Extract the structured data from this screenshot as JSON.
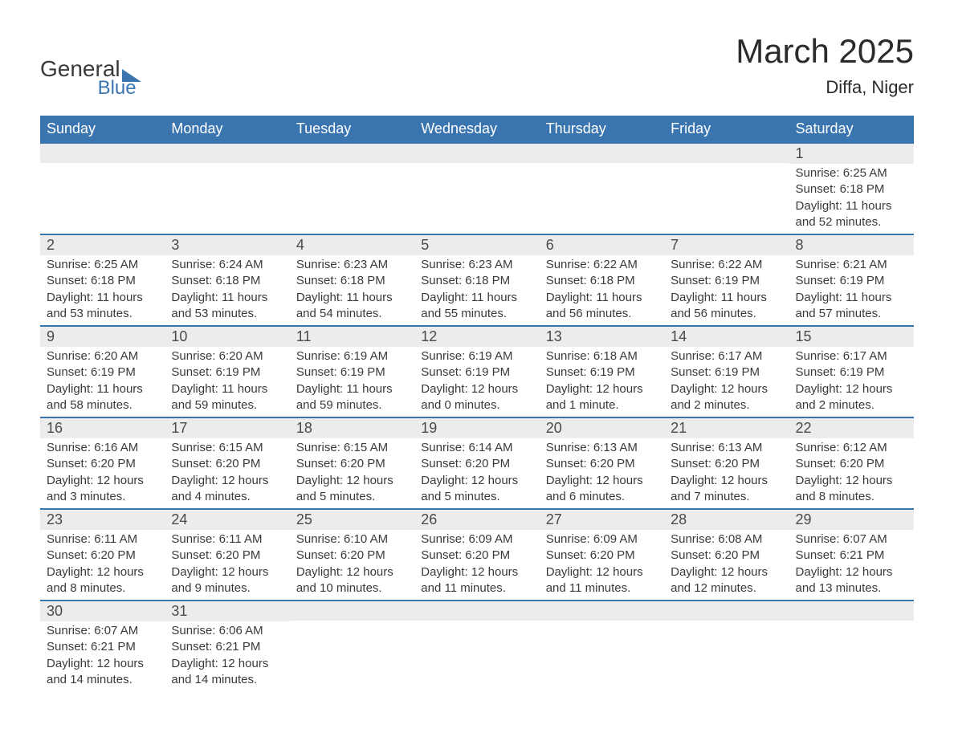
{
  "logo": {
    "primary": "General",
    "secondary": "Blue"
  },
  "title": "March 2025",
  "location": "Diffa, Niger",
  "colors": {
    "header_bg": "#3a75b0",
    "header_text": "#ffffff",
    "row_separator": "#3a75b0",
    "daynum_bg": "#ececec",
    "text": "#3a3a3a",
    "page_bg": "#ffffff"
  },
  "layout": {
    "columns": 7,
    "rows": 6,
    "week_start": "Sunday"
  },
  "weekdays": [
    "Sunday",
    "Monday",
    "Tuesday",
    "Wednesday",
    "Thursday",
    "Friday",
    "Saturday"
  ],
  "weeks": [
    [
      null,
      null,
      null,
      null,
      null,
      null,
      {
        "day": "1",
        "sunrise": "Sunrise: 6:25 AM",
        "sunset": "Sunset: 6:18 PM",
        "daylight": "Daylight: 11 hours and 52 minutes."
      }
    ],
    [
      {
        "day": "2",
        "sunrise": "Sunrise: 6:25 AM",
        "sunset": "Sunset: 6:18 PM",
        "daylight": "Daylight: 11 hours and 53 minutes."
      },
      {
        "day": "3",
        "sunrise": "Sunrise: 6:24 AM",
        "sunset": "Sunset: 6:18 PM",
        "daylight": "Daylight: 11 hours and 53 minutes."
      },
      {
        "day": "4",
        "sunrise": "Sunrise: 6:23 AM",
        "sunset": "Sunset: 6:18 PM",
        "daylight": "Daylight: 11 hours and 54 minutes."
      },
      {
        "day": "5",
        "sunrise": "Sunrise: 6:23 AM",
        "sunset": "Sunset: 6:18 PM",
        "daylight": "Daylight: 11 hours and 55 minutes."
      },
      {
        "day": "6",
        "sunrise": "Sunrise: 6:22 AM",
        "sunset": "Sunset: 6:18 PM",
        "daylight": "Daylight: 11 hours and 56 minutes."
      },
      {
        "day": "7",
        "sunrise": "Sunrise: 6:22 AM",
        "sunset": "Sunset: 6:19 PM",
        "daylight": "Daylight: 11 hours and 56 minutes."
      },
      {
        "day": "8",
        "sunrise": "Sunrise: 6:21 AM",
        "sunset": "Sunset: 6:19 PM",
        "daylight": "Daylight: 11 hours and 57 minutes."
      }
    ],
    [
      {
        "day": "9",
        "sunrise": "Sunrise: 6:20 AM",
        "sunset": "Sunset: 6:19 PM",
        "daylight": "Daylight: 11 hours and 58 minutes."
      },
      {
        "day": "10",
        "sunrise": "Sunrise: 6:20 AM",
        "sunset": "Sunset: 6:19 PM",
        "daylight": "Daylight: 11 hours and 59 minutes."
      },
      {
        "day": "11",
        "sunrise": "Sunrise: 6:19 AM",
        "sunset": "Sunset: 6:19 PM",
        "daylight": "Daylight: 11 hours and 59 minutes."
      },
      {
        "day": "12",
        "sunrise": "Sunrise: 6:19 AM",
        "sunset": "Sunset: 6:19 PM",
        "daylight": "Daylight: 12 hours and 0 minutes."
      },
      {
        "day": "13",
        "sunrise": "Sunrise: 6:18 AM",
        "sunset": "Sunset: 6:19 PM",
        "daylight": "Daylight: 12 hours and 1 minute."
      },
      {
        "day": "14",
        "sunrise": "Sunrise: 6:17 AM",
        "sunset": "Sunset: 6:19 PM",
        "daylight": "Daylight: 12 hours and 2 minutes."
      },
      {
        "day": "15",
        "sunrise": "Sunrise: 6:17 AM",
        "sunset": "Sunset: 6:19 PM",
        "daylight": "Daylight: 12 hours and 2 minutes."
      }
    ],
    [
      {
        "day": "16",
        "sunrise": "Sunrise: 6:16 AM",
        "sunset": "Sunset: 6:20 PM",
        "daylight": "Daylight: 12 hours and 3 minutes."
      },
      {
        "day": "17",
        "sunrise": "Sunrise: 6:15 AM",
        "sunset": "Sunset: 6:20 PM",
        "daylight": "Daylight: 12 hours and 4 minutes."
      },
      {
        "day": "18",
        "sunrise": "Sunrise: 6:15 AM",
        "sunset": "Sunset: 6:20 PM",
        "daylight": "Daylight: 12 hours and 5 minutes."
      },
      {
        "day": "19",
        "sunrise": "Sunrise: 6:14 AM",
        "sunset": "Sunset: 6:20 PM",
        "daylight": "Daylight: 12 hours and 5 minutes."
      },
      {
        "day": "20",
        "sunrise": "Sunrise: 6:13 AM",
        "sunset": "Sunset: 6:20 PM",
        "daylight": "Daylight: 12 hours and 6 minutes."
      },
      {
        "day": "21",
        "sunrise": "Sunrise: 6:13 AM",
        "sunset": "Sunset: 6:20 PM",
        "daylight": "Daylight: 12 hours and 7 minutes."
      },
      {
        "day": "22",
        "sunrise": "Sunrise: 6:12 AM",
        "sunset": "Sunset: 6:20 PM",
        "daylight": "Daylight: 12 hours and 8 minutes."
      }
    ],
    [
      {
        "day": "23",
        "sunrise": "Sunrise: 6:11 AM",
        "sunset": "Sunset: 6:20 PM",
        "daylight": "Daylight: 12 hours and 8 minutes."
      },
      {
        "day": "24",
        "sunrise": "Sunrise: 6:11 AM",
        "sunset": "Sunset: 6:20 PM",
        "daylight": "Daylight: 12 hours and 9 minutes."
      },
      {
        "day": "25",
        "sunrise": "Sunrise: 6:10 AM",
        "sunset": "Sunset: 6:20 PM",
        "daylight": "Daylight: 12 hours and 10 minutes."
      },
      {
        "day": "26",
        "sunrise": "Sunrise: 6:09 AM",
        "sunset": "Sunset: 6:20 PM",
        "daylight": "Daylight: 12 hours and 11 minutes."
      },
      {
        "day": "27",
        "sunrise": "Sunrise: 6:09 AM",
        "sunset": "Sunset: 6:20 PM",
        "daylight": "Daylight: 12 hours and 11 minutes."
      },
      {
        "day": "28",
        "sunrise": "Sunrise: 6:08 AM",
        "sunset": "Sunset: 6:20 PM",
        "daylight": "Daylight: 12 hours and 12 minutes."
      },
      {
        "day": "29",
        "sunrise": "Sunrise: 6:07 AM",
        "sunset": "Sunset: 6:21 PM",
        "daylight": "Daylight: 12 hours and 13 minutes."
      }
    ],
    [
      {
        "day": "30",
        "sunrise": "Sunrise: 6:07 AM",
        "sunset": "Sunset: 6:21 PM",
        "daylight": "Daylight: 12 hours and 14 minutes."
      },
      {
        "day": "31",
        "sunrise": "Sunrise: 6:06 AM",
        "sunset": "Sunset: 6:21 PM",
        "daylight": "Daylight: 12 hours and 14 minutes."
      },
      null,
      null,
      null,
      null,
      null
    ]
  ]
}
